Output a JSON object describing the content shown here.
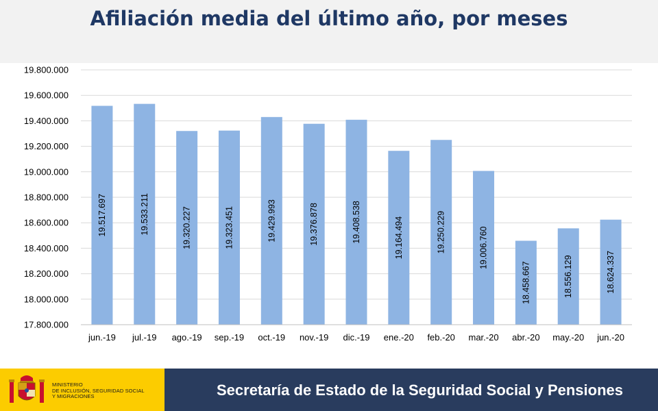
{
  "header": {
    "title": "Afiliación media del último año, por meses"
  },
  "footer": {
    "ministry_lines": [
      "MINISTERIO",
      "DE INCLUSIÓN, SEGURIDAD SOCIAL",
      "Y MIGRACIONES"
    ],
    "secretariat": "Secretaría de Estado de la Seguridad Social y Pensiones"
  },
  "colors": {
    "bar": "#8eb4e3",
    "header_bg": "#f2f2f2",
    "title": "#1f3864",
    "footer_gov": "#fccc00",
    "footer_sec": "#293c5e"
  },
  "chart_data": {
    "type": "bar",
    "categories": [
      "jun.-19",
      "jul.-19",
      "ago.-19",
      "sep.-19",
      "oct.-19",
      "nov.-19",
      "dic.-19",
      "ene.-20",
      "feb.-20",
      "mar.-20",
      "abr.-20",
      "may.-20",
      "jun.-20"
    ],
    "values": [
      19517697,
      19533211,
      19320227,
      19323451,
      19429993,
      19376878,
      19408538,
      19164494,
      19250229,
      19006760,
      18458667,
      18556129,
      18624337
    ],
    "value_labels": [
      "19.517.697",
      "19.533.211",
      "19.320.227",
      "19.323.451",
      "19.429.993",
      "19.376.878",
      "19.408.538",
      "19.164.494",
      "19.250.229",
      "19.006.760",
      "18.458.667",
      "18.556.129",
      "18.624.337"
    ],
    "ylim": [
      17800000,
      19800000
    ],
    "yticks": [
      17800000,
      18000000,
      18200000,
      18400000,
      18600000,
      18800000,
      19000000,
      19200000,
      19400000,
      19600000,
      19800000
    ],
    "ytick_labels": [
      "17.800.000",
      "18.000.000",
      "18.200.000",
      "18.400.000",
      "18.600.000",
      "18.800.000",
      "19.000.000",
      "19.200.000",
      "19.400.000",
      "19.600.000",
      "19.800.000"
    ],
    "grid": true,
    "data_label_orientation": "vertical"
  }
}
